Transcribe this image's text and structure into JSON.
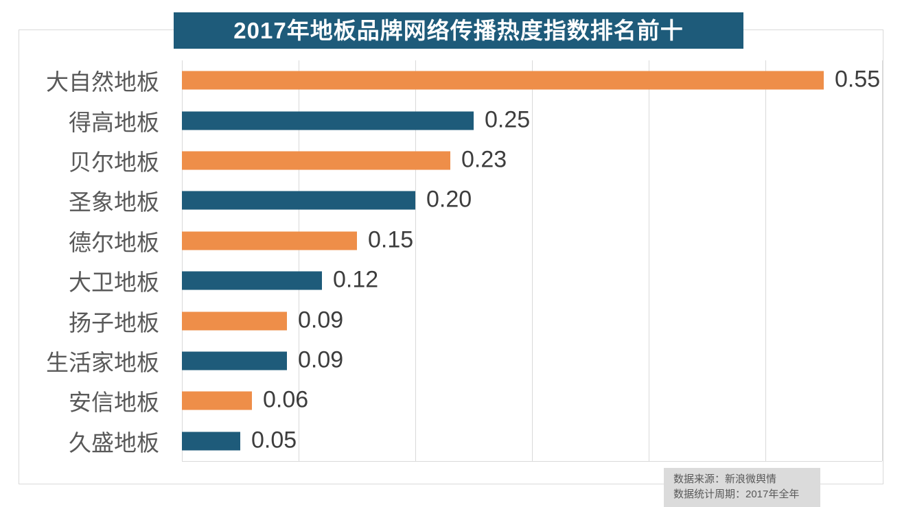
{
  "chart_data": {
    "type": "bar",
    "orientation": "horizontal",
    "title": "2017年地板品牌网络传播热度指数排名前十",
    "categories": [
      "大自然地板",
      "得高地板",
      "贝尔地板",
      "圣象地板",
      "德尔地板",
      "大卫地板",
      "扬子地板",
      "生活家地板",
      "安信地板",
      "久盛地板"
    ],
    "values": [
      0.55,
      0.25,
      0.23,
      0.2,
      0.15,
      0.12,
      0.09,
      0.09,
      0.06,
      0.05
    ],
    "value_labels": [
      "0.55",
      "0.25",
      "0.23",
      "0.20",
      "0.15",
      "0.12",
      "0.09",
      "0.09",
      "0.06",
      "0.05"
    ],
    "xlim": [
      0,
      0.6
    ],
    "x_tick_step": 0.1,
    "grid": "vertical-only",
    "legend": "none",
    "bar_colors_alternating": [
      "#ee8e49",
      "#1e5b7a"
    ],
    "title_bg_color": "#1e5b7a",
    "title_text_color": "#ffffff",
    "grid_color": "#d9d9d9",
    "category_label_color": "#595959",
    "value_label_color": "#3d3d3d"
  },
  "footer": {
    "line1": "数据来源：新浪微舆情",
    "line2": "数据统计周期：2017年全年"
  }
}
